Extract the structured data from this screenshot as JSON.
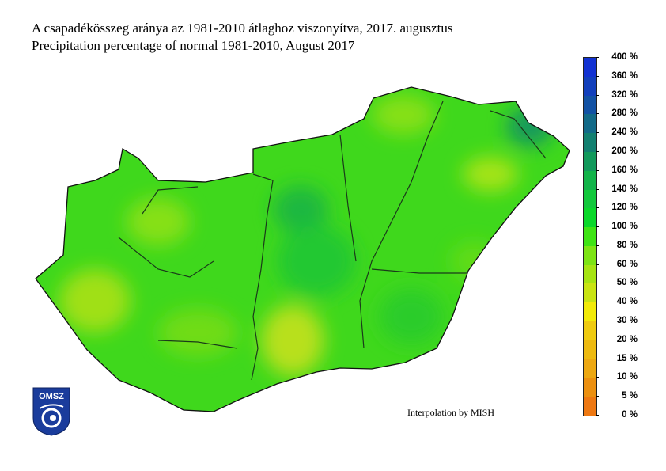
{
  "title_hu": "A csapadékösszeg aránya az 1981-2010 átlaghoz viszonyítva, 2017. augusztus",
  "title_en": "Precipitation percentage of normal 1981-2010, August 2017",
  "credit": "Interpolation by MISH",
  "logo": {
    "text": "OMSZ",
    "color": "#1a3c9c"
  },
  "legend": {
    "labels": [
      "0 %",
      "5 %",
      "10 %",
      "15 %",
      "20 %",
      "30 %",
      "40 %",
      "50 %",
      "60 %",
      "80 %",
      "100 %",
      "120 %",
      "140 %",
      "160 %",
      "200 %",
      "240 %",
      "280 %",
      "320 %",
      "360 %",
      "400 %"
    ],
    "colors": [
      "#ee7812",
      "#ec9010",
      "#eda812",
      "#eeba10",
      "#efcb10",
      "#f2ea08",
      "#c9e412",
      "#a6e412",
      "#7de414",
      "#3ee414",
      "#0ad82a",
      "#12c83c",
      "#12b44a",
      "#129a5c",
      "#128070",
      "#126a88",
      "#1252a4",
      "#1240bc",
      "#1232d2",
      "#0a1ee8"
    ]
  },
  "map_colors": {
    "base": "#3fd81c",
    "light": "#86e016",
    "yellow": "#b8e01a",
    "dark": "#1fbe3a",
    "border": "#1a2a1a"
  }
}
